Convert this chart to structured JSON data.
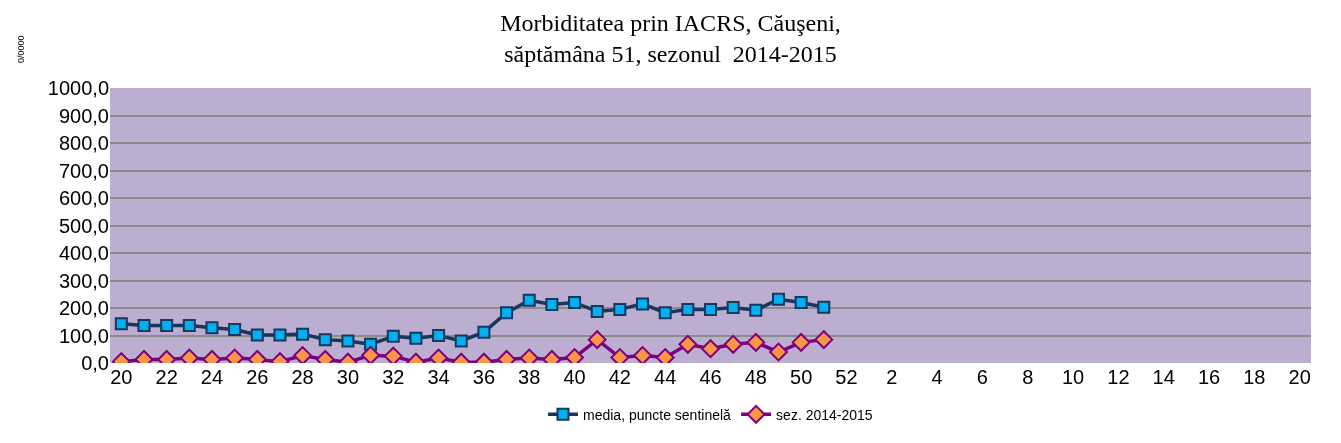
{
  "chart_data": {
    "type": "line",
    "title": "Morbiditatea prin IACRS, Căuşeni,\nsăptămâna 51, sezonul  2014-2015",
    "ylabel": "0/0000",
    "categories": [
      "20",
      null,
      "22",
      null,
      "24",
      null,
      "26",
      null,
      "28",
      null,
      "30",
      null,
      "32",
      null,
      "34",
      null,
      "36",
      null,
      "38",
      null,
      "40",
      null,
      "42",
      null,
      "44",
      null,
      "46",
      null,
      "48",
      null,
      "50",
      null,
      "52",
      null,
      "2",
      null,
      "4",
      null,
      "6",
      null,
      "8",
      null,
      "10",
      null,
      "12",
      null,
      "14",
      null,
      "16",
      null,
      "18",
      null,
      "20"
    ],
    "series": [
      {
        "name": "media, puncte sentinelă",
        "color": "#00b0f0",
        "marker": "square",
        "values": [
          143,
          136,
          136,
          136,
          128,
          122,
          102,
          102,
          105,
          85,
          80,
          68,
          97,
          90,
          100,
          80,
          112,
          183,
          228,
          213,
          220,
          187,
          195,
          215,
          183,
          195,
          195,
          202,
          192,
          232,
          220,
          203,
          null,
          null,
          null,
          null,
          null,
          null,
          null,
          null,
          null,
          null,
          null,
          null,
          null,
          null,
          null,
          null,
          null,
          null,
          null,
          null,
          null
        ]
      },
      {
        "name": "sez. 2014-2015",
        "color": "#f79646",
        "marker": "diamond",
        "values": [
          5,
          13,
          13,
          18,
          13,
          18,
          13,
          5,
          27,
          13,
          3,
          28,
          25,
          3,
          18,
          3,
          3,
          13,
          18,
          13,
          20,
          85,
          20,
          27,
          20,
          68,
          52,
          68,
          75,
          40,
          75,
          85,
          null,
          null,
          null,
          null,
          null,
          null,
          null,
          null,
          null,
          null,
          null,
          null,
          null,
          null,
          null,
          null,
          null,
          null,
          null,
          null,
          null
        ]
      }
    ],
    "ylim": [
      0,
      1000
    ],
    "yticks": [
      {
        "value": 0,
        "label": "0,0"
      },
      {
        "value": 100,
        "label": "100,0"
      },
      {
        "value": 200,
        "label": "200,0"
      },
      {
        "value": 300,
        "label": "300,0"
      },
      {
        "value": 400,
        "label": "400,0"
      },
      {
        "value": 500,
        "label": "500,0"
      },
      {
        "value": 600,
        "label": "600,0"
      },
      {
        "value": 700,
        "label": "700,0"
      },
      {
        "value": 800,
        "label": "800,0"
      },
      {
        "value": 900,
        "label": "900,0"
      },
      {
        "value": 1000,
        "label": "1000,0"
      }
    ],
    "grid": "y",
    "legend": "bottom"
  }
}
